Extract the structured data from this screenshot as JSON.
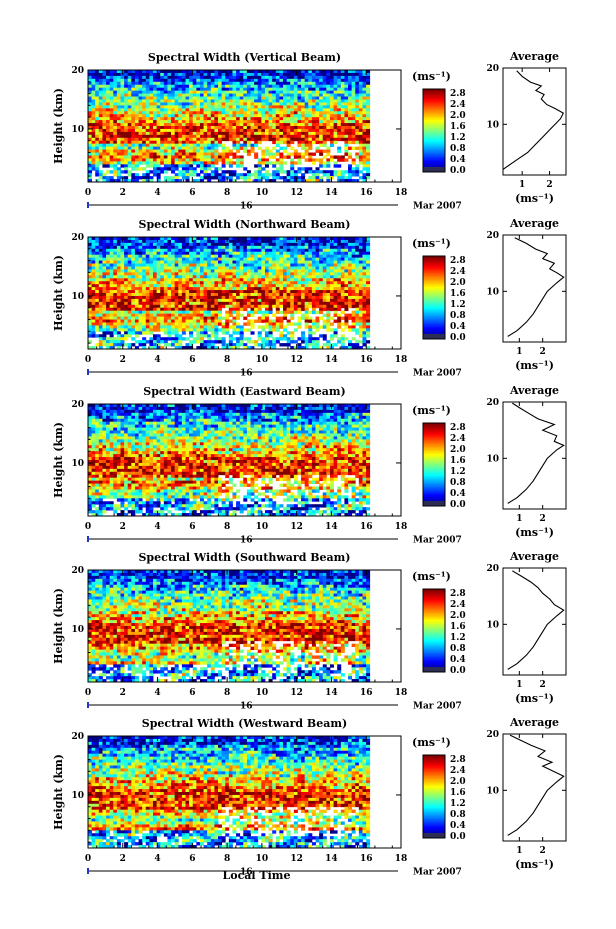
{
  "figure": {
    "x_axis_label": "Local Time",
    "date_label": "Mar 2007",
    "day_label": "16",
    "average_title": "Average",
    "unit_label": "(ms⁻¹)"
  },
  "chart_data": [
    {
      "type": "heatmap",
      "title": "Spectral Width (Vertical Beam)",
      "xlabel": "",
      "ylabel": "Height (km)",
      "xlim": [
        0,
        18
      ],
      "ylim": [
        1,
        20
      ],
      "x_ticks": [
        0,
        2,
        4,
        6,
        8,
        10,
        12,
        14,
        16,
        18
      ],
      "y_ticks": [
        10,
        20
      ],
      "data_end_hour": 16.2,
      "colorbar": {
        "label": "(ms⁻¹)",
        "min": 0.0,
        "max": 2.8,
        "ticks": [
          "2.8",
          "2.4",
          "2.0",
          "1.6",
          "1.2",
          "0.8",
          "0.4",
          "0.0"
        ]
      },
      "profile_average": {
        "title": "Average",
        "xlabel": "(ms⁻¹)",
        "xlim": [
          0.3,
          2.6
        ],
        "ylim": [
          1,
          20
        ],
        "x_ticks": [
          1,
          2
        ],
        "y_ticks": [
          10,
          20
        ],
        "points": [
          [
            0.3,
            2.0
          ],
          [
            0.6,
            3.0
          ],
          [
            0.9,
            4.0
          ],
          [
            1.2,
            5.0
          ],
          [
            1.5,
            6.5
          ],
          [
            1.8,
            8.0
          ],
          [
            2.1,
            9.5
          ],
          [
            2.4,
            11.0
          ],
          [
            2.5,
            12.0
          ],
          [
            2.2,
            12.8
          ],
          [
            1.9,
            13.5
          ],
          [
            1.7,
            14.5
          ],
          [
            1.8,
            15.3
          ],
          [
            1.5,
            16.0
          ],
          [
            1.7,
            16.8
          ],
          [
            1.3,
            17.5
          ],
          [
            1.0,
            18.5
          ],
          [
            0.8,
            19.5
          ]
        ]
      }
    },
    {
      "type": "heatmap",
      "title": "Spectral Width (Northward Beam)",
      "xlabel": "",
      "ylabel": "Height (km)",
      "xlim": [
        0,
        18
      ],
      "ylim": [
        1,
        20
      ],
      "x_ticks": [
        0,
        2,
        4,
        6,
        8,
        10,
        12,
        14,
        16,
        18
      ],
      "y_ticks": [
        10,
        20
      ],
      "data_end_hour": 16.2,
      "colorbar": {
        "label": "(ms⁻¹)",
        "min": 0.0,
        "max": 2.8,
        "ticks": [
          "2.8",
          "2.4",
          "2.0",
          "1.6",
          "1.2",
          "0.8",
          "0.4",
          "0.0"
        ]
      },
      "profile_average": {
        "title": "Average",
        "xlabel": "(ms⁻¹)",
        "xlim": [
          0.3,
          3.0
        ],
        "ylim": [
          1,
          20
        ],
        "x_ticks": [
          1,
          2
        ],
        "y_ticks": [
          10,
          20
        ],
        "points": [
          [
            0.5,
            2.0
          ],
          [
            0.9,
            3.0
          ],
          [
            1.3,
            4.5
          ],
          [
            1.6,
            6.0
          ],
          [
            1.9,
            8.0
          ],
          [
            2.2,
            10.0
          ],
          [
            2.6,
            11.5
          ],
          [
            2.9,
            12.5
          ],
          [
            2.6,
            13.3
          ],
          [
            2.3,
            14.0
          ],
          [
            2.5,
            15.0
          ],
          [
            2.0,
            15.8
          ],
          [
            2.2,
            16.7
          ],
          [
            1.7,
            17.5
          ],
          [
            1.3,
            18.5
          ],
          [
            0.8,
            19.5
          ]
        ]
      }
    },
    {
      "type": "heatmap",
      "title": "Spectral Width (Eastward Beam)",
      "xlabel": "",
      "ylabel": "Height (km)",
      "xlim": [
        0,
        18
      ],
      "ylim": [
        1,
        20
      ],
      "x_ticks": [
        0,
        2,
        4,
        6,
        8,
        10,
        12,
        14,
        16,
        18
      ],
      "y_ticks": [
        10,
        20
      ],
      "data_end_hour": 16.2,
      "colorbar": {
        "label": "(ms⁻¹)",
        "min": 0.0,
        "max": 2.8,
        "ticks": [
          "2.8",
          "2.4",
          "2.0",
          "1.6",
          "1.2",
          "0.8",
          "0.4",
          "0.0"
        ]
      },
      "profile_average": {
        "title": "Average",
        "xlabel": "(ms⁻¹)",
        "xlim": [
          0.3,
          3.0
        ],
        "ylim": [
          1,
          20
        ],
        "x_ticks": [
          1,
          2
        ],
        "y_ticks": [
          10,
          20
        ],
        "points": [
          [
            0.5,
            2.0
          ],
          [
            0.9,
            3.0
          ],
          [
            1.3,
            4.5
          ],
          [
            1.6,
            6.0
          ],
          [
            1.9,
            8.0
          ],
          [
            2.2,
            10.0
          ],
          [
            2.6,
            11.5
          ],
          [
            2.9,
            12.3
          ],
          [
            2.5,
            13.0
          ],
          [
            2.6,
            14.0
          ],
          [
            2.0,
            15.0
          ],
          [
            2.5,
            16.0
          ],
          [
            1.8,
            17.0
          ],
          [
            1.4,
            18.0
          ],
          [
            1.0,
            19.0
          ],
          [
            0.7,
            19.8
          ]
        ]
      }
    },
    {
      "type": "heatmap",
      "title": "Spectral Width (Southward Beam)",
      "xlabel": "",
      "ylabel": "Height (km)",
      "xlim": [
        0,
        18
      ],
      "ylim": [
        1,
        20
      ],
      "x_ticks": [
        0,
        2,
        4,
        6,
        8,
        10,
        12,
        14,
        16,
        18
      ],
      "y_ticks": [
        10,
        20
      ],
      "data_end_hour": 16.2,
      "colorbar": {
        "label": "(ms⁻¹)",
        "min": 0.0,
        "max": 2.8,
        "ticks": [
          "2.8",
          "2.4",
          "2.0",
          "1.6",
          "1.2",
          "0.8",
          "0.4",
          "0.0"
        ]
      },
      "profile_average": {
        "title": "Average",
        "xlabel": "(ms⁻¹)",
        "xlim": [
          0.3,
          3.0
        ],
        "ylim": [
          1,
          20
        ],
        "x_ticks": [
          1,
          2
        ],
        "y_ticks": [
          10,
          20
        ],
        "points": [
          [
            0.5,
            2.0
          ],
          [
            0.9,
            3.0
          ],
          [
            1.3,
            4.5
          ],
          [
            1.6,
            6.0
          ],
          [
            1.9,
            8.0
          ],
          [
            2.2,
            10.0
          ],
          [
            2.6,
            11.5
          ],
          [
            2.9,
            12.5
          ],
          [
            2.5,
            13.5
          ],
          [
            2.3,
            14.5
          ],
          [
            2.0,
            15.5
          ],
          [
            1.8,
            16.5
          ],
          [
            1.5,
            17.5
          ],
          [
            1.1,
            18.5
          ],
          [
            0.7,
            19.5
          ]
        ]
      }
    },
    {
      "type": "heatmap",
      "title": "Spectral Width (Westward Beam)",
      "xlabel": "Local Time",
      "ylabel": "Height (km)",
      "xlim": [
        0,
        18
      ],
      "ylim": [
        1,
        20
      ],
      "x_ticks": [
        0,
        2,
        4,
        6,
        8,
        10,
        12,
        14,
        16,
        18
      ],
      "y_ticks": [
        10,
        20
      ],
      "data_end_hour": 16.2,
      "colorbar": {
        "label": "(ms⁻¹)",
        "min": 0.0,
        "max": 2.8,
        "ticks": [
          "2.8",
          "2.4",
          "2.0",
          "1.6",
          "1.2",
          "0.8",
          "0.4",
          "0.0"
        ]
      },
      "profile_average": {
        "title": "Average",
        "xlabel": "(ms⁻¹)",
        "xlim": [
          0.3,
          3.0
        ],
        "ylim": [
          1,
          20
        ],
        "x_ticks": [
          1,
          2
        ],
        "y_ticks": [
          10,
          20
        ],
        "points": [
          [
            0.5,
            2.0
          ],
          [
            0.9,
            3.0
          ],
          [
            1.3,
            4.5
          ],
          [
            1.6,
            6.0
          ],
          [
            1.9,
            8.0
          ],
          [
            2.2,
            10.0
          ],
          [
            2.6,
            11.5
          ],
          [
            2.9,
            12.5
          ],
          [
            2.4,
            13.5
          ],
          [
            2.0,
            14.3
          ],
          [
            2.4,
            15.0
          ],
          [
            1.8,
            16.0
          ],
          [
            2.1,
            17.0
          ],
          [
            1.5,
            18.0
          ],
          [
            1.0,
            19.0
          ],
          [
            0.6,
            19.8
          ]
        ]
      }
    }
  ]
}
